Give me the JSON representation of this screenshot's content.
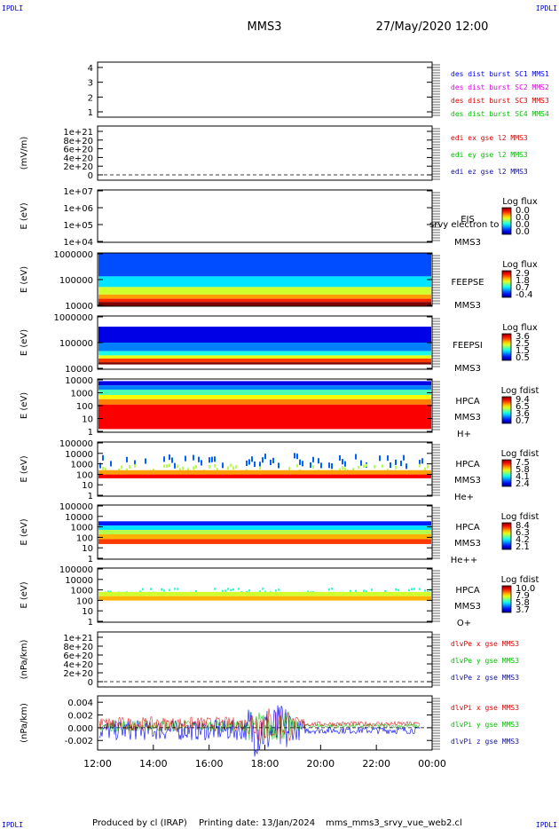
{
  "header": {
    "corner_label": "IPDLI",
    "spacecraft": "MMS3",
    "datetime": "27/May/2020 12:00"
  },
  "footer": {
    "produced_by": "Produced by cl (IRAP)",
    "printing_date": "Printing date: 13/Jan/2024",
    "script_name": "mms_mms3_srvy_vue_web2.cl"
  },
  "colors": {
    "blue": "#0000ff",
    "magenta": "#e000e0",
    "red": "#e00000",
    "green": "#00c000",
    "darkblue": "#1010a0"
  },
  "chart_data": {
    "type": "heatmap",
    "x_ticks": [
      "12:00",
      "14:00",
      "16:00",
      "18:00",
      "20:00",
      "22:00",
      "00:00"
    ],
    "panels": [
      {
        "id": "burst",
        "kind": "lines",
        "ylabel": "",
        "yticks": [
          "4",
          "3",
          "2",
          "1"
        ],
        "legend": [
          {
            "text": "des dist burst SC1 MMS1",
            "color": "blue"
          },
          {
            "text": "des dist burst SC2 MMS2",
            "color": "magenta"
          },
          {
            "text": "des dist burst SC3 MMS3",
            "color": "red"
          },
          {
            "text": "des dist burst SC4 MMS4",
            "color": "green"
          }
        ]
      },
      {
        "id": "edi",
        "kind": "lines",
        "ylabel": "(mV/m)",
        "yticks": [
          "1e+21",
          "8e+20",
          "6e+20",
          "4e+20",
          "2e+20",
          "0"
        ],
        "zero_line": true,
        "legend": [
          {
            "text": "edi ex gse l2 MMS3",
            "color": "red"
          },
          {
            "text": "edi ey gse l2 MMS3",
            "color": "green"
          },
          {
            "text": "edi ez gse l2 MMS3",
            "color": "darkblue"
          }
        ]
      },
      {
        "id": "eis",
        "kind": "spectrogram",
        "ylabel": "E (eV)",
        "yticks": [
          "1e+07",
          "1e+06",
          "1e+05",
          "1e+04"
        ],
        "labels": [
          "EIS",
          "MMS3"
        ],
        "overlap_text": "srvy electron to",
        "cbar_title": "Log flux",
        "cbar_ticks": [
          "0.0",
          "0.0",
          "0.0",
          "0.0"
        ],
        "bands": []
      },
      {
        "id": "feepse",
        "kind": "spectrogram",
        "ylabel": "E (eV)",
        "yticks": [
          "1000000",
          "100000",
          "10000"
        ],
        "labels": [
          "FEEPSE",
          "MMS3"
        ],
        "cbar_title": "Log flux",
        "cbar_ticks": [
          "2.9",
          "1.8",
          "0.7",
          "-0.4"
        ],
        "bands": [
          {
            "from": 0.0,
            "to": 0.44,
            "level": 0.2
          },
          {
            "from": 0.44,
            "to": 0.64,
            "level": 0.35
          },
          {
            "from": 0.64,
            "to": 0.78,
            "level": 0.58
          },
          {
            "from": 0.78,
            "to": 0.86,
            "level": 0.72
          },
          {
            "from": 0.86,
            "to": 0.92,
            "level": 0.84
          },
          {
            "from": 0.92,
            "to": 1.0,
            "level": 1.0
          }
        ]
      },
      {
        "id": "feepsi",
        "kind": "spectrogram",
        "ylabel": "E (eV)",
        "yticks": [
          "1000000",
          "100000",
          "10000"
        ],
        "labels": [
          "FEEPSI",
          "MMS3"
        ],
        "cbar_title": "Log flux",
        "cbar_ticks": [
          "3.6",
          "2.5",
          "1.5",
          "0.5"
        ],
        "bands": [
          {
            "from": 0.2,
            "to": 0.5,
            "level": 0.1
          },
          {
            "from": 0.5,
            "to": 0.66,
            "level": 0.25
          },
          {
            "from": 0.66,
            "to": 0.74,
            "level": 0.4
          },
          {
            "from": 0.74,
            "to": 0.8,
            "level": 0.6
          },
          {
            "from": 0.8,
            "to": 0.87,
            "level": 0.82
          },
          {
            "from": 0.87,
            "to": 0.91,
            "level": 1.0
          }
        ]
      },
      {
        "id": "hpca_h",
        "kind": "spectrogram",
        "ylabel": "E (eV)",
        "yticks": [
          "10000",
          "1000",
          "100",
          "10",
          "1"
        ],
        "labels": [
          "HPCA",
          "MMS3",
          "H+"
        ],
        "cbar_title": "Log fdist",
        "cbar_ticks": [
          "9.4",
          "6.5",
          "3.6",
          "0.7"
        ],
        "bands": [
          {
            "from": 0.04,
            "to": 0.12,
            "level": 0.1
          },
          {
            "from": 0.12,
            "to": 0.2,
            "level": 0.25
          },
          {
            "from": 0.2,
            "to": 0.3,
            "level": 0.45
          },
          {
            "from": 0.3,
            "to": 0.38,
            "level": 0.62
          },
          {
            "from": 0.38,
            "to": 0.48,
            "level": 0.75
          },
          {
            "from": 0.48,
            "to": 0.94,
            "level": 0.88
          }
        ]
      },
      {
        "id": "hpca_he",
        "kind": "spectrogram",
        "ylabel": "E (eV)",
        "yticks": [
          "100000",
          "10000",
          "1000",
          "100",
          "10",
          "1"
        ],
        "labels": [
          "HPCA",
          "MMS3",
          "He+"
        ],
        "cbar_title": "Log fdist",
        "cbar_ticks": [
          "7.5",
          "5.8",
          "4.1",
          "2.4"
        ],
        "bands": [
          {
            "from": 0.2,
            "to": 0.4,
            "level": 0.22,
            "sparse": true
          },
          {
            "from": 0.4,
            "to": 0.52,
            "level": 0.55,
            "sparse": true
          },
          {
            "from": 0.52,
            "to": 0.6,
            "level": 0.72
          },
          {
            "from": 0.6,
            "to": 0.67,
            "level": 0.88
          }
        ]
      },
      {
        "id": "hpca_hepp",
        "kind": "spectrogram",
        "ylabel": "E (eV)",
        "yticks": [
          "100000",
          "10000",
          "1000",
          "100",
          "10",
          "1"
        ],
        "labels": [
          "HPCA",
          "MMS3",
          "He++"
        ],
        "cbar_title": "Log fdist",
        "cbar_ticks": [
          "8.4",
          "6.3",
          "4.2",
          "2.1"
        ],
        "bands": [
          {
            "from": 0.3,
            "to": 0.38,
            "level": 0.15
          },
          {
            "from": 0.38,
            "to": 0.46,
            "level": 0.35
          },
          {
            "from": 0.46,
            "to": 0.54,
            "level": 0.55
          },
          {
            "from": 0.54,
            "to": 0.63,
            "level": 0.7
          },
          {
            "from": 0.63,
            "to": 0.72,
            "level": 0.82
          }
        ]
      },
      {
        "id": "hpca_o",
        "kind": "spectrogram",
        "ylabel": "E (eV)",
        "yticks": [
          "100000",
          "10000",
          "1000",
          "100",
          "10",
          "1"
        ],
        "labels": [
          "HPCA",
          "MMS3",
          "O+"
        ],
        "cbar_title": "Log fdist",
        "cbar_ticks": [
          "10.0",
          "7.9",
          "5.8",
          "3.7"
        ],
        "bands": [
          {
            "from": 0.36,
            "to": 0.44,
            "level": 0.42,
            "sparse": true
          },
          {
            "from": 0.44,
            "to": 0.52,
            "level": 0.58
          },
          {
            "from": 0.52,
            "to": 0.6,
            "level": 0.7
          }
        ]
      },
      {
        "id": "dlvpe",
        "kind": "lines",
        "ylabel": "(nPa/km)",
        "yticks": [
          "1e+21",
          "8e+20",
          "6e+20",
          "4e+20",
          "2e+20",
          "0"
        ],
        "zero_line": true,
        "legend": [
          {
            "text": "dlvPe x gse MMS3",
            "color": "red"
          },
          {
            "text": "dlvPe y gse MMS3",
            "color": "green"
          },
          {
            "text": "dlvPe z gse MMS3",
            "color": "darkblue"
          }
        ]
      },
      {
        "id": "dlvpi",
        "kind": "timeseries",
        "ylabel": "(nPa/km)",
        "yticks": [
          "0.004",
          "0.002",
          "0.000",
          "-0.002"
        ],
        "ylim": [
          -0.0035,
          0.005
        ],
        "zero_line": true,
        "legend": [
          {
            "text": "dlvPi x gse MMS3",
            "color": "red"
          },
          {
            "text": "dlvPi y gse MMS3",
            "color": "green"
          },
          {
            "text": "dlvPi z gse MMS3",
            "color": "darkblue"
          }
        ]
      }
    ]
  }
}
